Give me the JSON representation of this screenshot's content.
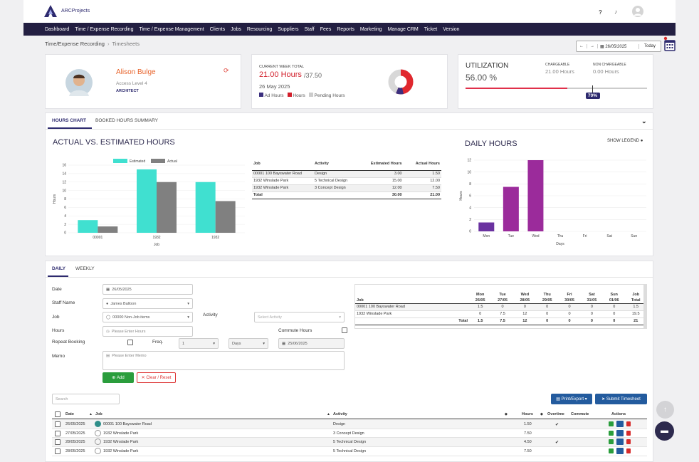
{
  "app": {
    "logo_text": "ARCProjects"
  },
  "nav": [
    "Dashboard",
    "Time / Expense Recording",
    "Time / Expense Management",
    "Clients",
    "Jobs",
    "Resourcing",
    "Suppliers",
    "Staff",
    "Fees",
    "Reports",
    "Marketing",
    "Manage CRM",
    "Ticket",
    "Version"
  ],
  "breadcrumb": {
    "parent": "Time/Expense Recording",
    "sep": "›",
    "current": "Timesheets"
  },
  "datebar": {
    "date": "26/05/2025",
    "today": "Today"
  },
  "profile": {
    "name": "Alison Bulge",
    "access": "Access Level  4",
    "role": "ARCHITECT"
  },
  "week": {
    "caption": "CURRENT WEEK TOTAL",
    "hours": "21.00 Hours",
    "target": "/37.50",
    "date": "26 May 2025",
    "legend": [
      "Ad Hours",
      "Hours",
      "Pending Hours"
    ],
    "donut_fraction": 0.56
  },
  "utilization": {
    "title": "UTILIZATION",
    "value": "56.00 %",
    "chargeable_label": "CHARGEABLE",
    "chargeable_value": "21.00 Hours",
    "nonchargeable_label": "NON CHARGEABLE",
    "nonchargeable_value": "0.00 Hours",
    "marker": "70%",
    "fill_fraction": 0.56,
    "marker_fraction": 0.7
  },
  "tabs_top": [
    "HOURS CHART",
    "BOOKED HOURS SUMMARY"
  ],
  "actual": {
    "title": "ACTUAL VS. ESTIMATED HOURS"
  },
  "job_table": {
    "headers": [
      "Job",
      "Activity",
      "Estimated Hours",
      "Actual Hours"
    ],
    "rows": [
      [
        "00001 100 Bayswater Road",
        "Design",
        "3.00",
        "1.50"
      ],
      [
        "1932 Winslade Park",
        "5 Technical Design",
        "15.00",
        "12.00"
      ],
      [
        "1932 Winslade Park",
        "3 Concept Design",
        "12.00",
        "7.50"
      ]
    ],
    "total": [
      "Total",
      "",
      "30.00",
      "21.00"
    ]
  },
  "daily": {
    "title": "DAILY HOURS",
    "legend_link": "SHOW LEGEND"
  },
  "chart_data": [
    {
      "type": "bar",
      "title": "ACTUAL VS. ESTIMATED HOURS",
      "categories": [
        "00001",
        "1932",
        "1932"
      ],
      "series": [
        {
          "name": "Estimated",
          "color": "#40e0d0",
          "values": [
            3,
            15,
            12
          ]
        },
        {
          "name": "Actual",
          "color": "#808080",
          "values": [
            1.5,
            12,
            7.5
          ]
        }
      ],
      "xlabel": "Job",
      "ylabel": "Hours",
      "ylim": [
        0,
        16
      ],
      "yticks": [
        0,
        2,
        4,
        6,
        8,
        10,
        12,
        14,
        16
      ]
    },
    {
      "type": "bar",
      "title": "DAILY HOURS",
      "categories": [
        "Mon",
        "Tue",
        "Wed",
        "Thu",
        "Fri",
        "Sat",
        "Sun"
      ],
      "values": [
        1.5,
        7.5,
        12,
        0,
        0,
        0,
        0
      ],
      "colors": [
        "#6a32a0",
        "#9b2b9b",
        "#9b2b9b",
        "#9b2b9b",
        "#9b2b9b",
        "#9b2b9b",
        "#9b2b9b"
      ],
      "xlabel": "Days",
      "ylabel": "Hours",
      "ylim": [
        0,
        12
      ],
      "yticks": [
        0,
        2,
        4,
        6,
        8,
        10,
        12
      ]
    }
  ],
  "tabs_mid": [
    "DAILY",
    "WEEKLY"
  ],
  "form": {
    "date_label": "Date",
    "date_value": "26/05/2025",
    "staff_label": "Staff Name",
    "staff_value": "James Balloon",
    "job_label": "Job",
    "job_value": "00000 Non-Job items",
    "activity_label": "Activity",
    "activity_placeholder": "Select Activity",
    "hours_label": "Hours",
    "hours_placeholder": "Please Enter Hours",
    "commute_label": "Commute Hours",
    "repeat_label": "Repeat Booking",
    "freq_label": "Freq.",
    "freq_value": "1",
    "unit_value": "Days",
    "end_date": "25/06/2025",
    "memo_label": "Memo",
    "memo_placeholder": "Please Enter Memo",
    "add": "Add",
    "clear": "Clear / Reset"
  },
  "week_table": {
    "headers": [
      "Job",
      "Mon\n26/05",
      "Tue\n27/05",
      "Wed\n28/05",
      "Thu\n29/05",
      "Fri\n30/05",
      "Sat\n31/05",
      "Sun\n01/06",
      "Job\nTotal"
    ],
    "rows": [
      [
        "00001 100 Bayswater Road",
        "1.5",
        "0",
        "0",
        "0",
        "0",
        "0",
        "0",
        "1.5"
      ],
      [
        "1932 Winslade Park",
        "0",
        "7.5",
        "12",
        "0",
        "0",
        "0",
        "0",
        "19.5"
      ]
    ],
    "total": [
      "Total",
      "1.5",
      "7.5",
      "12",
      "0",
      "0",
      "0",
      "0",
      "21"
    ]
  },
  "list": {
    "search_placeholder": "Search",
    "print": "Print/Export",
    "submit": "Submit Timesheet",
    "headers": [
      "Date",
      "Job",
      "Activity",
      "Hours",
      "Overtime",
      "Commute",
      "Actions"
    ],
    "rows": [
      [
        "26/05/2025",
        "00001 100 Bayswater Road",
        "Design",
        "1.50",
        "✔"
      ],
      [
        "27/05/2025",
        "1932 Winslade Park",
        "3 Concept Design",
        "7.50",
        ""
      ],
      [
        "28/05/2025",
        "1932 Winslade Park",
        "5 Technical Design",
        "4.50",
        "✔"
      ],
      [
        "28/05/2025",
        "1932 Winslade Park",
        "5 Technical Design",
        "7.50",
        ""
      ]
    ]
  }
}
